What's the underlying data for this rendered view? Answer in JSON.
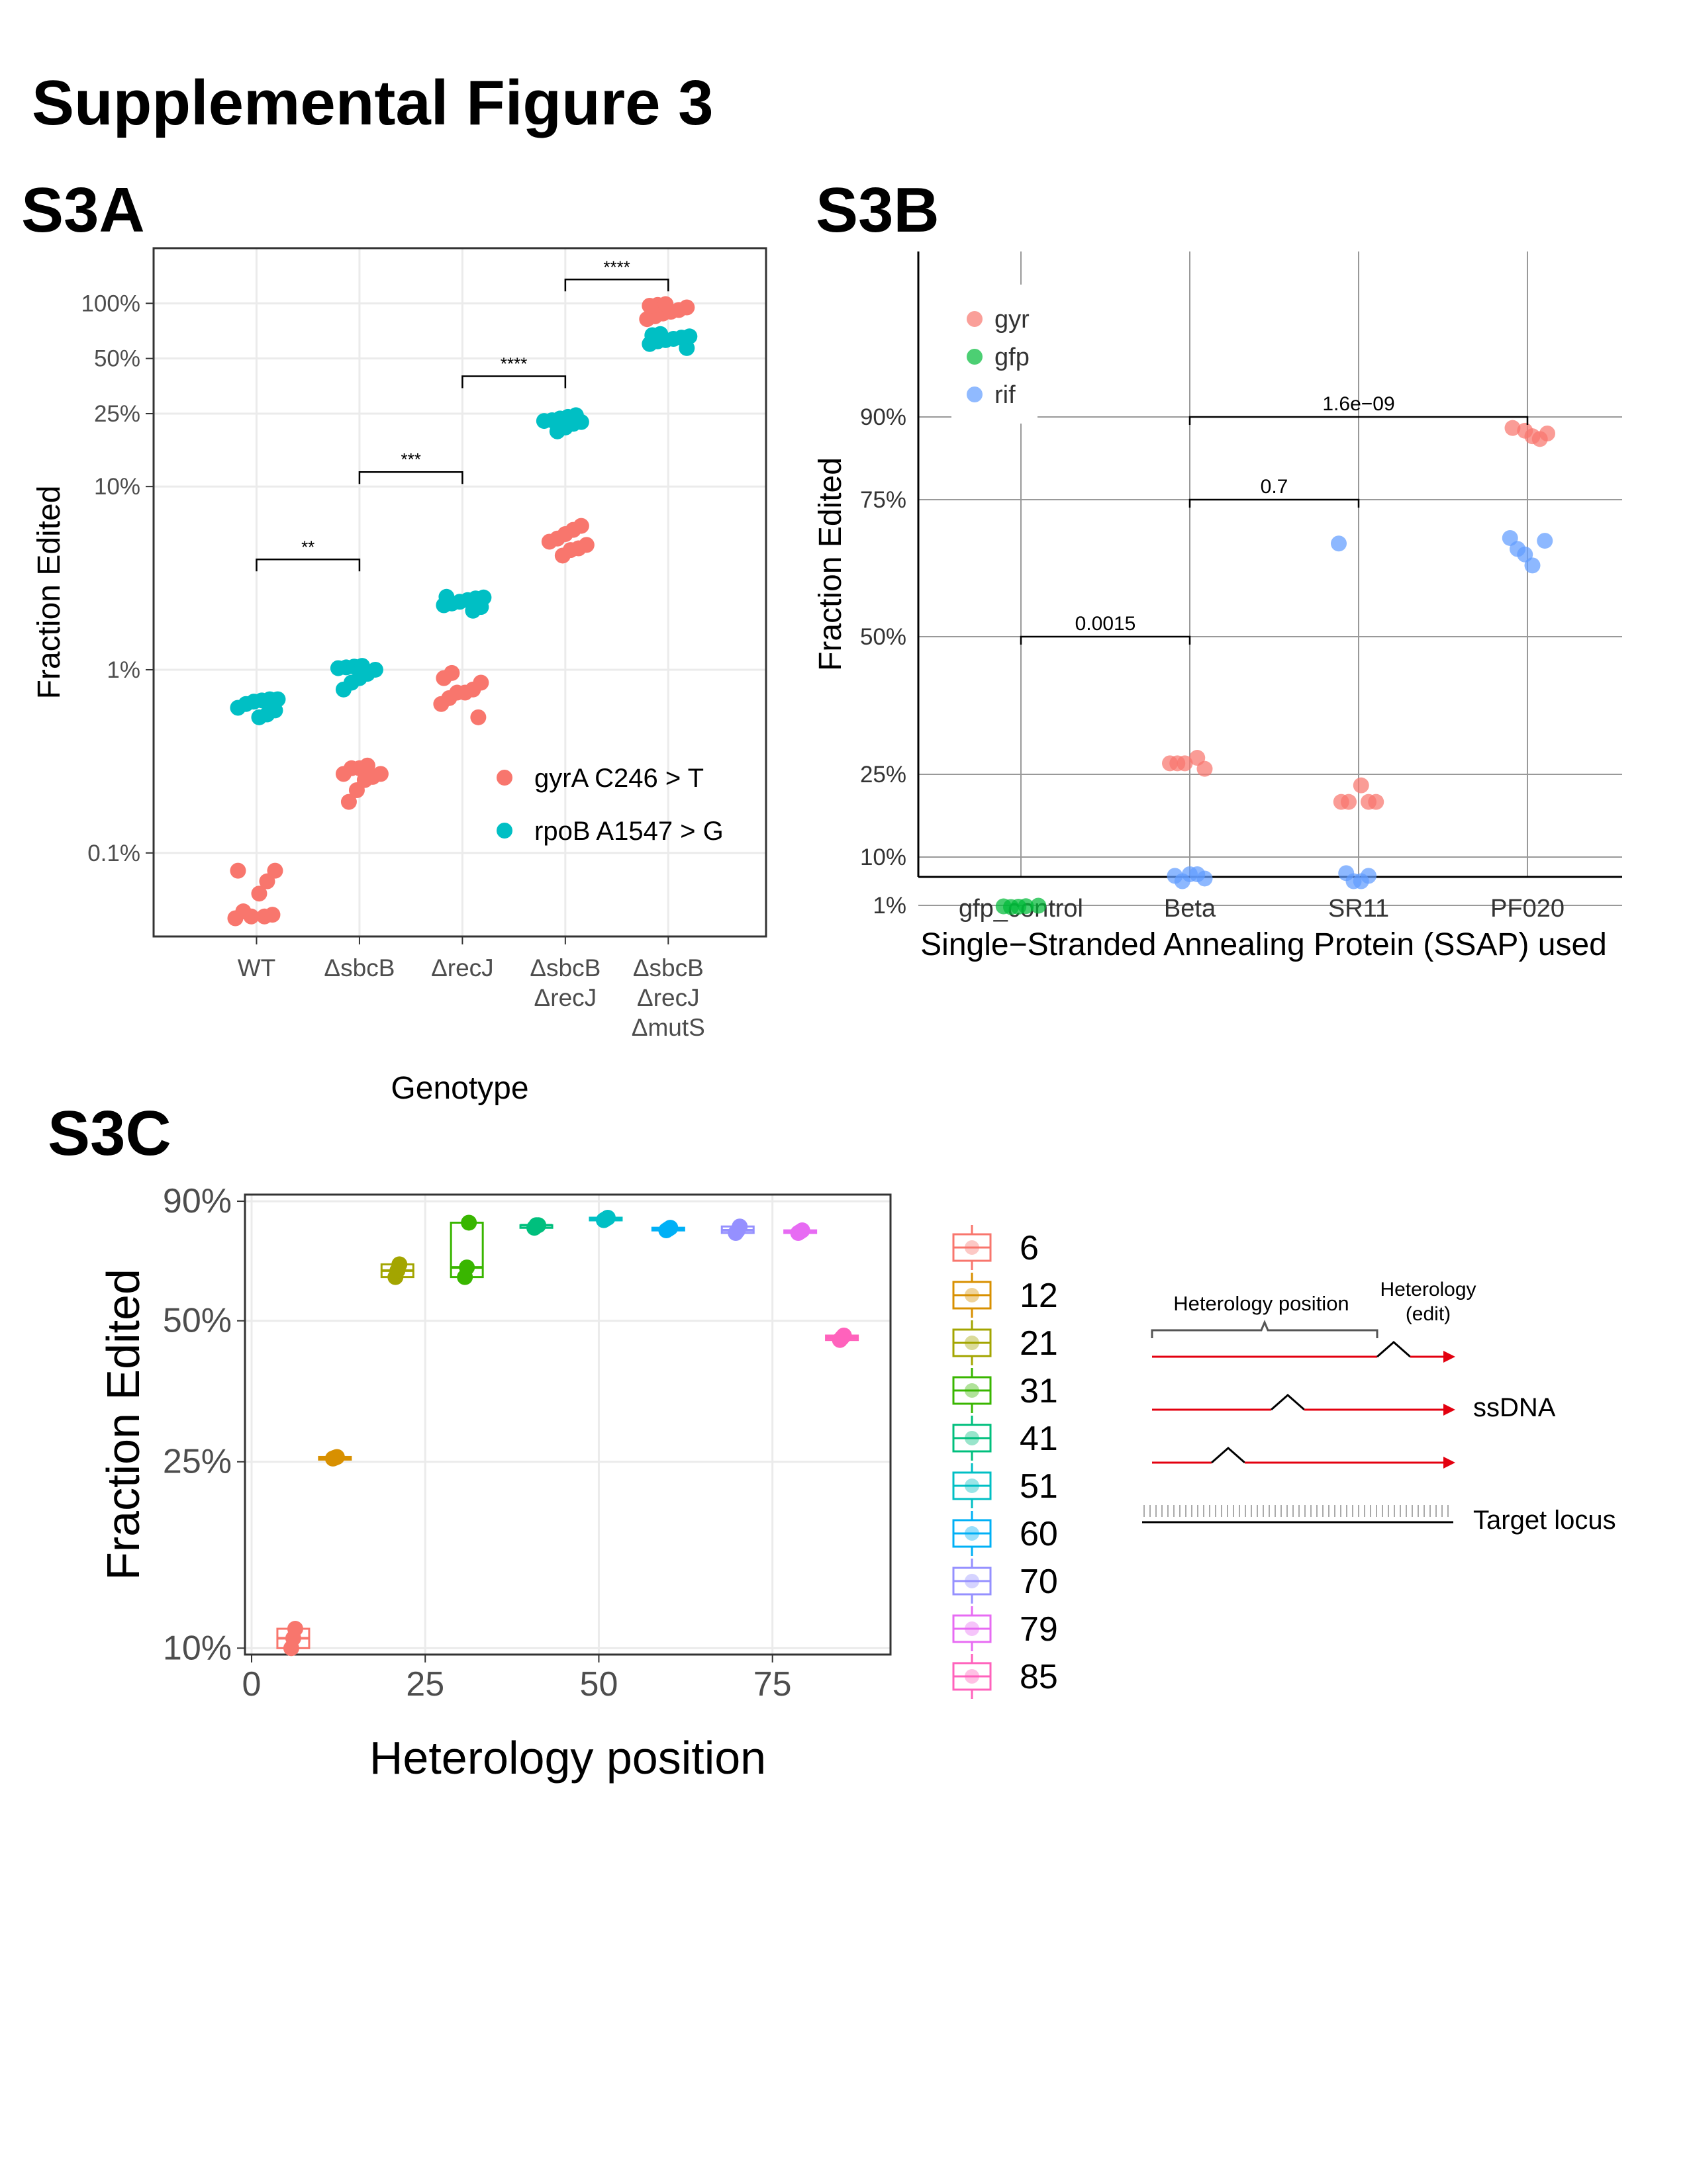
{
  "figure_title": "Supplemental Figure 3",
  "panels": {
    "a": "S3A",
    "b": "S3B",
    "c": "S3C"
  },
  "chart_data": [
    {
      "id": "S3A",
      "type": "scatter",
      "xlabel": "Genotype",
      "ylabel": "Fraction Edited",
      "y_scale": "log",
      "categories": [
        "WT",
        "ΔsbcB",
        "ΔrecJ",
        "ΔsbcB\nΔrecJ",
        "ΔsbcB\nΔrecJ\nΔmutS"
      ],
      "y_ticks": [
        {
          "v": 0.001,
          "label": "0.1%"
        },
        {
          "v": 0.01,
          "label": "1%"
        },
        {
          "v": 0.1,
          "label": "10%"
        },
        {
          "v": 0.25,
          "label": "25%"
        },
        {
          "v": 0.5,
          "label": "50%"
        },
        {
          "v": 1.0,
          "label": "100%"
        }
      ],
      "ylim": [
        0.00035,
        2.0
      ],
      "grid": true,
      "legend_position": "bottom-right",
      "series": [
        {
          "name": "gyrA C246 > T",
          "color": "#F8766D",
          "points": [
            [
              0,
              0.00045
            ],
            [
              0,
              0.00046
            ],
            [
              0,
              0.00044
            ],
            [
              0,
              0.00048
            ],
            [
              0,
              0.00045
            ],
            [
              0,
              0.0006
            ],
            [
              0,
              0.0007
            ],
            [
              0,
              0.0008
            ],
            [
              0,
              0.0008
            ],
            [
              1,
              0.0019
            ],
            [
              1,
              0.0022
            ],
            [
              1,
              0.0025
            ],
            [
              1,
              0.0026
            ],
            [
              1,
              0.0027
            ],
            [
              1,
              0.0027
            ],
            [
              1,
              0.0029
            ],
            [
              1,
              0.0029
            ],
            [
              1,
              0.003
            ],
            [
              2,
              0.0055
            ],
            [
              2,
              0.0065
            ],
            [
              2,
              0.007
            ],
            [
              2,
              0.0075
            ],
            [
              2,
              0.0075
            ],
            [
              2,
              0.0078
            ],
            [
              2,
              0.0085
            ],
            [
              2,
              0.009
            ],
            [
              2,
              0.0096
            ],
            [
              3,
              0.042
            ],
            [
              3,
              0.045
            ],
            [
              3,
              0.046
            ],
            [
              3,
              0.048
            ],
            [
              3,
              0.05
            ],
            [
              3,
              0.052
            ],
            [
              3,
              0.055
            ],
            [
              3,
              0.058
            ],
            [
              3,
              0.061
            ],
            [
              4,
              0.82
            ],
            [
              4,
              0.85
            ],
            [
              4,
              0.88
            ],
            [
              4,
              0.9
            ],
            [
              4,
              0.92
            ],
            [
              4,
              0.95
            ],
            [
              4,
              0.97
            ],
            [
              4,
              0.98
            ],
            [
              4,
              0.99
            ]
          ]
        },
        {
          "name": "rpoB A1547 > G",
          "color": "#00BFC4",
          "points": [
            [
              0,
              0.0055
            ],
            [
              0,
              0.0057
            ],
            [
              0,
              0.006
            ],
            [
              0,
              0.0062
            ],
            [
              0,
              0.0065
            ],
            [
              0,
              0.0067
            ],
            [
              0,
              0.0068
            ],
            [
              0,
              0.0069
            ],
            [
              0,
              0.0069
            ],
            [
              1,
              0.0078
            ],
            [
              1,
              0.0085
            ],
            [
              1,
              0.009
            ],
            [
              1,
              0.0095
            ],
            [
              1,
              0.01
            ],
            [
              1,
              0.0102
            ],
            [
              1,
              0.0103
            ],
            [
              1,
              0.0104
            ],
            [
              1,
              0.0105
            ],
            [
              2,
              0.021
            ],
            [
              2,
              0.022
            ],
            [
              2,
              0.0225
            ],
            [
              2,
              0.023
            ],
            [
              2,
              0.0235
            ],
            [
              2,
              0.024
            ],
            [
              2,
              0.0245
            ],
            [
              2,
              0.0248
            ],
            [
              2,
              0.025
            ],
            [
              3,
              0.2
            ],
            [
              3,
              0.21
            ],
            [
              3,
              0.22
            ],
            [
              3,
              0.225
            ],
            [
              3,
              0.228
            ],
            [
              3,
              0.23
            ],
            [
              3,
              0.235
            ],
            [
              3,
              0.24
            ],
            [
              3,
              0.245
            ],
            [
              4,
              0.57
            ],
            [
              4,
              0.6
            ],
            [
              4,
              0.62
            ],
            [
              4,
              0.63
            ],
            [
              4,
              0.64
            ],
            [
              4,
              0.65
            ],
            [
              4,
              0.66
            ],
            [
              4,
              0.67
            ],
            [
              4,
              0.68
            ]
          ]
        }
      ],
      "brackets": [
        {
          "from": 0,
          "to": 1,
          "y": 0.04,
          "label": "**"
        },
        {
          "from": 1,
          "to": 2,
          "y": 0.12,
          "label": "***"
        },
        {
          "from": 2,
          "to": 3,
          "y": 0.4,
          "label": "****"
        },
        {
          "from": 3,
          "to": 4,
          "y": 1.35,
          "label": "****"
        }
      ]
    },
    {
      "id": "S3B",
      "type": "scatter",
      "xlabel": "Single−Stranded Annealing Protein (SSAP) used",
      "ylabel": "Fraction Edited",
      "categories": [
        "gfp_control",
        "Beta",
        "SR11",
        "PF020"
      ],
      "y_ticks": [
        {
          "v": 0.01,
          "label": "1%"
        },
        {
          "v": 0.1,
          "label": "10%"
        },
        {
          "v": 0.25,
          "label": "25%"
        },
        {
          "v": 0.5,
          "label": "50%"
        },
        {
          "v": 0.75,
          "label": "75%"
        },
        {
          "v": 0.9,
          "label": "90%"
        }
      ],
      "grid": true,
      "legend_position": "top-left",
      "series": [
        {
          "name": "gyr",
          "color": "#F8766D",
          "points": [
            [
              1,
              0.28
            ],
            [
              1,
              0.26
            ],
            [
              1,
              0.27
            ],
            [
              1,
              0.27
            ],
            [
              1,
              0.27
            ],
            [
              2,
              0.23
            ],
            [
              2,
              0.2
            ],
            [
              2,
              0.2
            ],
            [
              2,
              0.2
            ],
            [
              2,
              0.2
            ],
            [
              3,
              0.875
            ],
            [
              3,
              0.865
            ],
            [
              3,
              0.86
            ],
            [
              3,
              0.87
            ],
            [
              3,
              0.88
            ]
          ]
        },
        {
          "name": "gfp",
          "color": "#00BA38",
          "points": [
            [
              0,
              0.0095
            ],
            [
              0,
              0.0085
            ],
            [
              0,
              0.0075
            ],
            [
              0,
              0.008
            ],
            [
              0,
              0.0088
            ]
          ]
        },
        {
          "name": "rif",
          "color": "#619CFF",
          "points": [
            [
              1,
              0.065
            ],
            [
              1,
              0.055
            ],
            [
              1,
              0.068
            ],
            [
              1,
              0.068
            ],
            [
              1,
              0.06
            ],
            [
              2,
              0.67
            ],
            [
              2,
              0.07
            ],
            [
              2,
              0.055
            ],
            [
              2,
              0.055
            ],
            [
              2,
              0.065
            ],
            [
              3,
              0.675
            ],
            [
              3,
              0.68
            ],
            [
              3,
              0.66
            ],
            [
              3,
              0.65
            ],
            [
              3,
              0.63
            ]
          ]
        }
      ],
      "brackets": [
        {
          "from": 0,
          "to": 1,
          "y": 0.5,
          "label": "0.0015"
        },
        {
          "from": 1,
          "to": 2,
          "y": 0.75,
          "label": "0.7"
        },
        {
          "from": 1,
          "to": 3,
          "y": 0.9,
          "label": "1.6e−09"
        }
      ]
    },
    {
      "id": "S3C",
      "type": "scatter",
      "xlabel": "Heterology position",
      "ylabel": "Fraction Edited",
      "xlim": [
        0,
        92
      ],
      "x_ticks": [
        0,
        25,
        50,
        75
      ],
      "y_ticks": [
        {
          "v": 0.1,
          "label": "10%"
        },
        {
          "v": 0.25,
          "label": "25%"
        },
        {
          "v": 0.5,
          "label": "50%"
        },
        {
          "v": 0.9,
          "label": "90%"
        }
      ],
      "grid": true,
      "legend_position": "right",
      "series": [
        {
          "name": "6",
          "color": "#F8766D",
          "x": 6,
          "values": [
            0.105,
            0.11,
            0.1
          ]
        },
        {
          "name": "12",
          "color": "#D89000",
          "x": 12,
          "values": [
            0.254,
            0.256,
            0.255
          ]
        },
        {
          "name": "21",
          "color": "#A3A500",
          "x": 21,
          "values": [
            0.64,
            0.62,
            0.66
          ]
        },
        {
          "name": "31",
          "color": "#39B600",
          "x": 31,
          "values": [
            0.62,
            0.65,
            0.81
          ]
        },
        {
          "name": "41",
          "color": "#00BF7D",
          "x": 41,
          "values": [
            0.79,
            0.8,
            0.8
          ]
        },
        {
          "name": "51",
          "color": "#00BFC4",
          "x": 51,
          "values": [
            0.82,
            0.83,
            0.825
          ]
        },
        {
          "name": "60",
          "color": "#00B0F6",
          "x": 60,
          "values": [
            0.785,
            0.79,
            0.78
          ]
        },
        {
          "name": "70",
          "color": "#9590FF",
          "x": 70,
          "values": [
            0.78,
            0.795,
            0.77
          ]
        },
        {
          "name": "79",
          "color": "#E76BF3",
          "x": 79,
          "values": [
            0.77,
            0.78,
            0.775
          ]
        },
        {
          "name": "85",
          "color": "#FF62BC",
          "x": 85,
          "values": [
            0.46,
            0.465,
            0.455
          ]
        }
      ]
    }
  ],
  "schematic": {
    "heterology_position_label": "Heterology position",
    "heterology_edit_label_1": "Heterology",
    "heterology_edit_label_2": "(edit)",
    "ssdna_label": "ssDNA",
    "target_locus_label": "Target locus"
  }
}
